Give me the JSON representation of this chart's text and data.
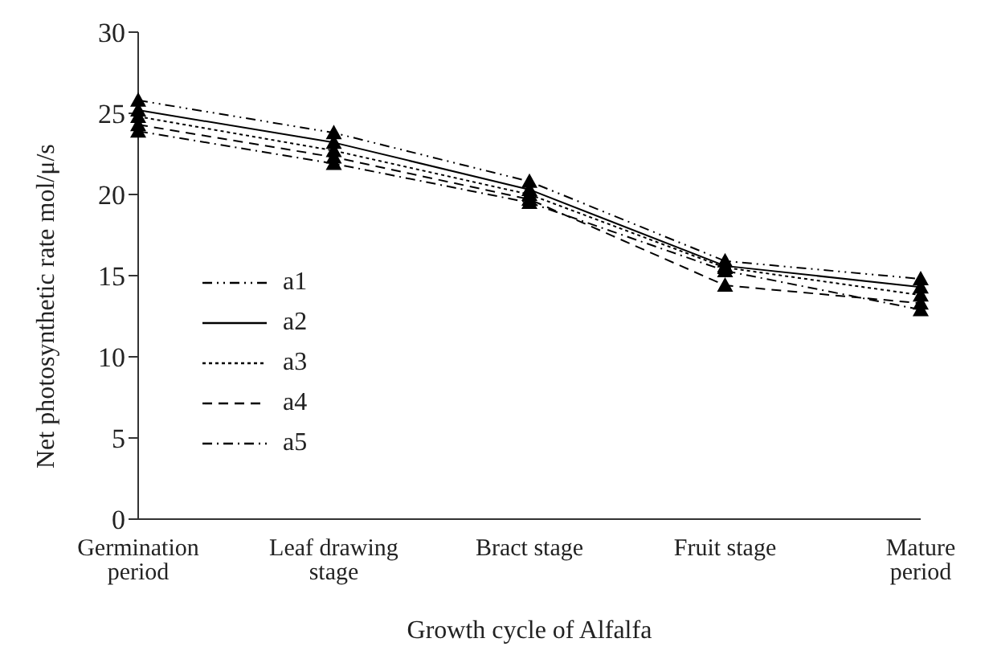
{
  "chart_data": {
    "type": "line",
    "xlabel": "Growth cycle of Alfalfa",
    "ylabel": "Net photosynthetic rate  mol/μ/s",
    "categories": [
      "Germination period",
      "Leaf drawing stage",
      "Bract stage",
      "Fruit stage",
      "Mature period"
    ],
    "series": [
      {
        "name": "a1",
        "color": "#000000",
        "line_style": "dashdotdot",
        "values": [
          25.8,
          23.8,
          20.8,
          15.9,
          14.8
        ]
      },
      {
        "name": "a2",
        "color": "#000000",
        "line_style": "solid",
        "values": [
          25.2,
          23.2,
          20.3,
          15.6,
          14.3
        ]
      },
      {
        "name": "a3",
        "color": "#000000",
        "line_style": "dotted",
        "values": [
          24.8,
          22.7,
          20.0,
          15.5,
          13.8
        ]
      },
      {
        "name": "a4",
        "color": "#000000",
        "line_style": "dashed",
        "values": [
          24.3,
          22.3,
          19.7,
          14.4,
          13.3
        ]
      },
      {
        "name": "a5",
        "color": "#000000",
        "line_style": "dashdot",
        "values": [
          23.9,
          21.9,
          19.5,
          15.3,
          12.9
        ]
      }
    ],
    "ylim": [
      0,
      30
    ],
    "yticks": [
      0,
      5,
      10,
      15,
      20,
      25,
      30
    ],
    "marker": "triangle",
    "grid": false,
    "legend": "left"
  }
}
